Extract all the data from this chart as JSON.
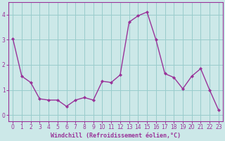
{
  "x": [
    0,
    1,
    2,
    3,
    4,
    5,
    6,
    7,
    8,
    9,
    10,
    11,
    12,
    13,
    14,
    15,
    16,
    17,
    18,
    19,
    20,
    21,
    22,
    23
  ],
  "y": [
    3.05,
    1.55,
    1.3,
    0.65,
    0.6,
    0.6,
    0.35,
    0.6,
    0.7,
    0.6,
    1.35,
    1.3,
    1.6,
    3.7,
    3.95,
    4.1,
    3.0,
    1.65,
    1.5,
    1.05,
    1.55,
    1.85,
    1.0,
    0.2
  ],
  "line_color": "#993399",
  "marker": "D",
  "marker_size": 2.0,
  "bg_color": "#cce8e8",
  "grid_color": "#99cccc",
  "xlabel": "Windchill (Refroidissement éolien,°C)",
  "xlabel_color": "#993399",
  "xlabel_fontsize": 6.0,
  "ylabel_ticks": [
    0,
    1,
    2,
    3,
    4
  ],
  "xtick_labels": [
    "0",
    "1",
    "2",
    "3",
    "4",
    "5",
    "6",
    "7",
    "8",
    "9",
    "10",
    "11",
    "12",
    "13",
    "14",
    "15",
    "16",
    "17",
    "18",
    "19",
    "20",
    "21",
    "22",
    "23"
  ],
  "ylim": [
    -0.25,
    4.5
  ],
  "xlim": [
    -0.5,
    23.5
  ],
  "tick_color": "#993399",
  "tick_fontsize": 5.5,
  "axis_color": "#993399",
  "linewidth": 1.0
}
